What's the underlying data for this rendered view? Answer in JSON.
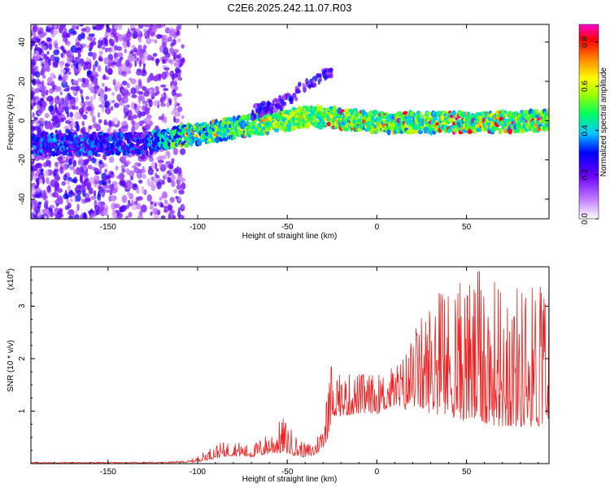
{
  "title": "C2E6.2025.242.11.07.R03",
  "colorbar": {
    "label": "Normalized spectral amplitude",
    "ticks": [
      "0.0",
      "0.2",
      "0.4",
      "0.6",
      "0.8"
    ],
    "tick_values": [
      0.0,
      0.2,
      0.4,
      0.6,
      0.8
    ],
    "range": [
      0,
      0.88
    ]
  },
  "chart_data": [
    {
      "type": "heatmap",
      "title": "C2E6.2025.242.11.07.R03",
      "xlabel": "Height of straight line (km)",
      "ylabel": "Frequency (Hz)",
      "xlim": [
        -193,
        96
      ],
      "ylim": [
        -50,
        49
      ],
      "xticks": [
        -150,
        -100,
        -50,
        0,
        50
      ],
      "xtick_labels": [
        "-150",
        "-100",
        "-50",
        "0",
        "50"
      ],
      "yticks": [
        -40,
        -20,
        0,
        20,
        40
      ],
      "ytick_labels": [
        "-40",
        "-20",
        "0",
        "20",
        "40"
      ],
      "colorscale": "rainbow (white → purple → blue → cyan → green → yellow → orange → red → magenta)",
      "description": "Dense low-amplitude speckle for heights below about -120 km; a narrow band near -12 Hz rising to about 0 Hz between -120 and -40 km, with a faint branch climbing to about 20 Hz near -40 km; for heights above -30 km a bright band centred near 0 Hz with peak amplitudes up to about 0.85.",
      "band_trend": {
        "x": [
          -193,
          -130,
          -110,
          -80,
          -60,
          -40,
          -30,
          0,
          50,
          96
        ],
        "frequency_hz": [
          -12,
          -12,
          -8,
          -4,
          -1,
          2,
          2,
          -1,
          -1,
          0
        ]
      }
    },
    {
      "type": "line",
      "xlabel": "Height of straight line (km)",
      "ylabel": "SNR (10 * v/v)",
      "scale_label": "(x10",
      "scale_exp": "4",
      "scale_close": ")",
      "xlim": [
        -193,
        96
      ],
      "ylim": [
        0,
        3.75
      ],
      "xticks": [
        -150,
        -100,
        -50,
        0,
        50
      ],
      "xtick_labels": [
        "-150",
        "-100",
        "-50",
        "0",
        "50"
      ],
      "yticks": [
        1,
        2,
        3
      ],
      "ytick_labels": [
        "1",
        "2",
        "3"
      ],
      "color": "#ee2222",
      "envelope": {
        "x": [
          -193,
          -120,
          -105,
          -100,
          -90,
          -80,
          -70,
          -60,
          -52,
          -45,
          -40,
          -35,
          -30,
          -27,
          -25,
          -20,
          -10,
          0,
          10,
          15,
          20,
          30,
          40,
          50,
          60,
          70,
          80,
          96
        ],
        "baseline": [
          0.01,
          0.01,
          0.02,
          0.03,
          0.1,
          0.15,
          0.12,
          0.18,
          0.2,
          0.14,
          0.12,
          0.14,
          0.3,
          0.5,
          0.9,
          0.9,
          0.95,
          0.95,
          1.1,
          1.0,
          1.1,
          0.95,
          0.9,
          0.8,
          0.75,
          0.7,
          0.7,
          0.7
        ],
        "peak": [
          0.03,
          0.03,
          0.06,
          0.15,
          0.38,
          0.45,
          0.35,
          0.62,
          0.9,
          0.55,
          0.38,
          0.45,
          0.8,
          1.5,
          2.0,
          1.7,
          1.75,
          1.7,
          1.9,
          2.1,
          2.5,
          3.2,
          3.4,
          3.6,
          3.7,
          3.5,
          3.45,
          3.55
        ]
      }
    }
  ]
}
